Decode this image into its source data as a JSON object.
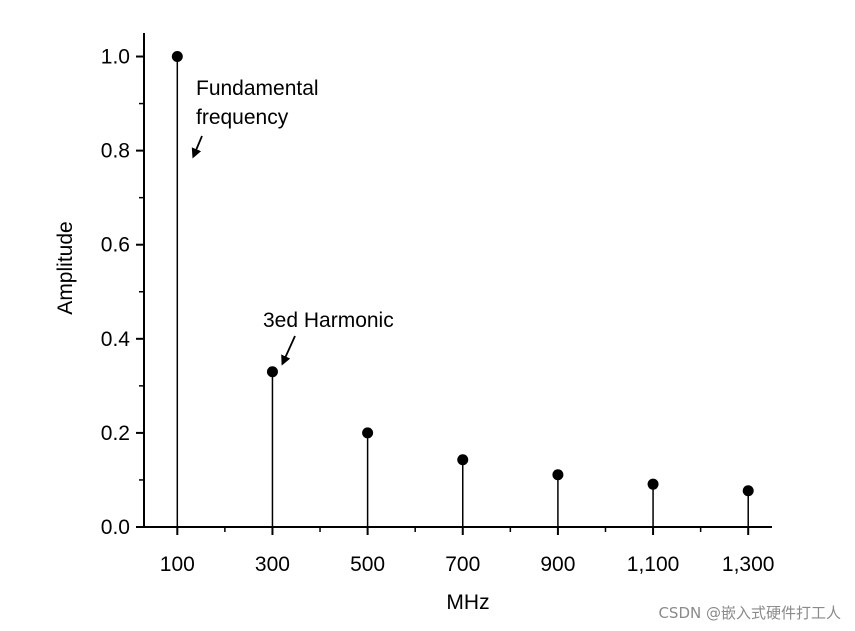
{
  "chart_data": {
    "type": "stem",
    "title": "",
    "xlabel": "MHz",
    "ylabel": "Amplitude",
    "x": [
      100,
      300,
      500,
      700,
      900,
      1100,
      1300
    ],
    "values": [
      1.0,
      0.33,
      0.2,
      0.143,
      0.111,
      0.091,
      0.077
    ],
    "xlim": [
      30,
      1350
    ],
    "ylim": [
      0,
      1.05
    ],
    "x_ticks": [
      100,
      300,
      500,
      700,
      900,
      1100,
      1300
    ],
    "x_tick_labels": [
      "100",
      "300",
      "500",
      "700",
      "900",
      "1,100",
      "1,300"
    ],
    "y_ticks": [
      0.0,
      0.2,
      0.4,
      0.6,
      0.8,
      1.0
    ],
    "y_tick_labels": [
      "0.0",
      "0.2",
      "0.4",
      "0.6",
      "0.8",
      "1.0"
    ],
    "grid": false,
    "annotations": [
      {
        "lines": [
          "Fundamental",
          "frequency"
        ],
        "target_x": 100,
        "target_y": 0.8
      },
      {
        "lines": [
          "3ed Harmonic"
        ],
        "target_x": 300,
        "target_y": 0.33
      }
    ]
  },
  "watermark": "CSDN @嵌入式硬件打工人"
}
